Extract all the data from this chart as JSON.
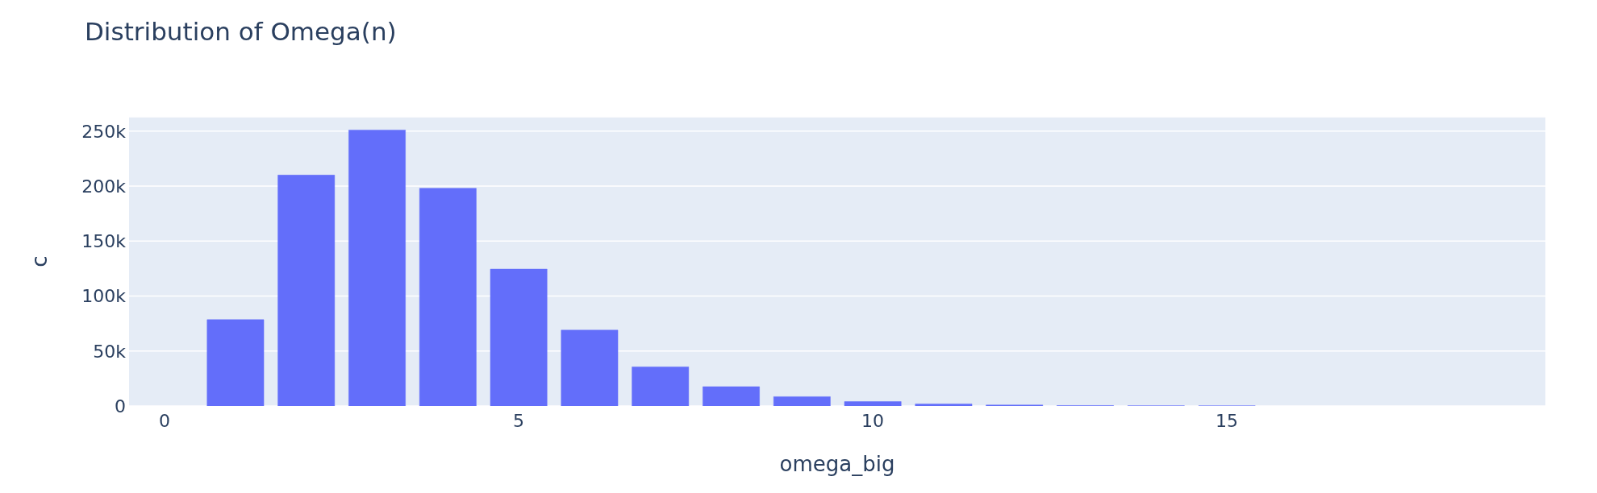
{
  "chart_data": {
    "type": "bar",
    "title": "Distribution of Omega(n)",
    "xlabel": "omega_big",
    "ylabel": "c",
    "x": [
      0,
      1,
      2,
      3,
      4,
      5,
      6,
      7,
      8,
      9,
      10,
      11,
      12,
      13,
      14,
      15,
      16,
      17,
      18,
      19
    ],
    "values": [
      0,
      78500,
      210000,
      251000,
      198000,
      124500,
      69000,
      35600,
      17600,
      8500,
      4000,
      1900,
      900,
      400,
      200,
      100,
      0,
      0,
      0,
      0
    ],
    "color": "#636efa",
    "xlim": [
      -0.5,
      19.5
    ],
    "xticks": [
      0,
      5,
      10,
      15
    ],
    "ylim": [
      0,
      263000
    ],
    "yticks": [
      0,
      {
        "value": 50000,
        "label": "50k"
      },
      {
        "value": 100000,
        "label": "100k"
      },
      {
        "value": 150000,
        "label": "150k"
      },
      {
        "value": 200000,
        "label": "200k"
      },
      {
        "value": 250000,
        "label": "250k"
      }
    ],
    "grid": "y"
  }
}
